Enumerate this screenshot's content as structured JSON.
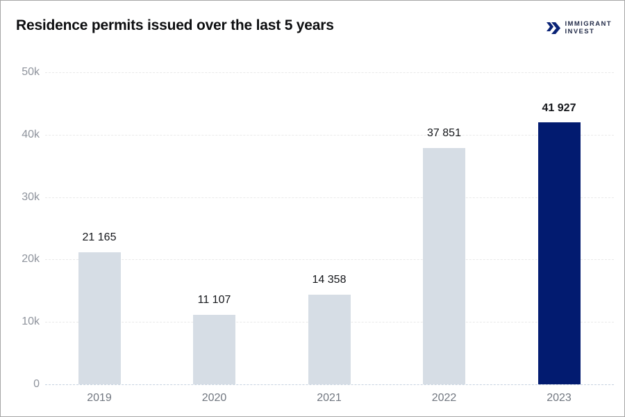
{
  "header": {
    "title": "Residence permits issued over the last 5 years",
    "logo": {
      "line1": "IMMIGRANT",
      "line2": "INVEST"
    }
  },
  "chart_data": {
    "type": "bar",
    "title": "Residence permits issued over the last 5 years",
    "categories": [
      "2019",
      "2020",
      "2021",
      "2022",
      "2023"
    ],
    "values": [
      21165,
      11107,
      14358,
      37851,
      41927
    ],
    "value_labels": [
      "21 165",
      "11 107",
      "14 358",
      "37 851",
      "41 927"
    ],
    "highlight_index": 4,
    "xlabel": "",
    "ylabel": "",
    "ylim": [
      0,
      50000
    ],
    "yticks": [
      0,
      10000,
      20000,
      30000,
      40000,
      50000
    ],
    "ytick_labels": [
      "0",
      "10k",
      "20k",
      "30k",
      "40k",
      "50k"
    ],
    "grid": "horizontal-dashed",
    "legend": "none",
    "colors": {
      "bar": "#d6dde5",
      "bar_highlight": "#021b70",
      "gridline": "#e9e9e9",
      "baseline": "#c6d2e0",
      "tick_label": "#8e939c",
      "category_label": "#70767f",
      "value_label": "#131519",
      "title": "#0d0e10",
      "logo_text": "#232c49",
      "logo_icon": "#0a2376"
    }
  }
}
